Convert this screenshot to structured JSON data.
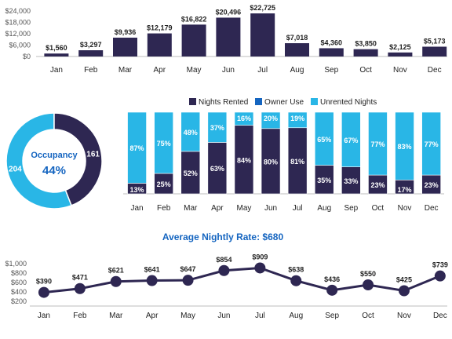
{
  "colors": {
    "dark": "#2E2752",
    "blue": "#1565C0",
    "cyan": "#29B6E6",
    "axis": "#555555",
    "grid": "#DDDDDD",
    "title": "#1565C0",
    "label": "#1F1F1F"
  },
  "chart_data": [
    {
      "type": "bar",
      "title": "",
      "categories": [
        "Jan",
        "Feb",
        "Mar",
        "Apr",
        "May",
        "Jun",
        "Jul",
        "Aug",
        "Sep",
        "Oct",
        "Nov",
        "Dec"
      ],
      "values": [
        1560,
        3297,
        9936,
        12179,
        16822,
        20496,
        22725,
        7018,
        4360,
        3850,
        2125,
        5173
      ],
      "value_labels": [
        "$1,560",
        "$3,297",
        "$9,936",
        "$12,179",
        "$16,822",
        "$20,496",
        "$22,725",
        "$7,018",
        "$4,360",
        "$3,850",
        "$2,125",
        "$5,173"
      ],
      "ylim": [
        0,
        24000
      ],
      "y_ticks": [
        0,
        6000,
        12000,
        18000,
        24000
      ],
      "y_tick_labels": [
        "$0",
        "$6,000",
        "$12,000",
        "$18,000",
        "$24,000"
      ],
      "grid": false
    },
    {
      "type": "pie",
      "title": "",
      "center_label": "Occupancy",
      "center_value": "44%",
      "slices": [
        {
          "name": "Nights Rented",
          "value": 161,
          "label": "161"
        },
        {
          "name": "Unrented Nights",
          "value": 204,
          "label": "204"
        }
      ]
    },
    {
      "type": "bar",
      "stacked": true,
      "percent": true,
      "title": "",
      "categories": [
        "Jan",
        "Feb",
        "Mar",
        "Apr",
        "May",
        "Jun",
        "Jul",
        "Aug",
        "Sep",
        "Oct",
        "Nov",
        "Dec"
      ],
      "legend_position": "top-right",
      "series": [
        {
          "name": "Nights Rented",
          "values": [
            13,
            25,
            52,
            63,
            84,
            80,
            81,
            35,
            33,
            23,
            17,
            23
          ],
          "labels": [
            "13%",
            "25%",
            "52%",
            "63%",
            "84%",
            "80%",
            "81%",
            "35%",
            "33%",
            "23%",
            "17%",
            "23%"
          ]
        },
        {
          "name": "Owner Use",
          "values": [
            0,
            0,
            0,
            0,
            0,
            0,
            0,
            0,
            0,
            0,
            0,
            0
          ],
          "labels": []
        },
        {
          "name": "Unrented Nights",
          "values": [
            87,
            75,
            48,
            37,
            16,
            20,
            19,
            65,
            67,
            77,
            83,
            77
          ],
          "labels": [
            "87%",
            "75%",
            "48%",
            "37%",
            "16%",
            "20%",
            "19%",
            "65%",
            "67%",
            "77%",
            "83%",
            "77%"
          ]
        }
      ],
      "ylim": [
        0,
        100
      ]
    },
    {
      "type": "line",
      "title": "Average Nightly Rate: $680",
      "categories": [
        "Jan",
        "Feb",
        "Mar",
        "Apr",
        "May",
        "Jun",
        "Jul",
        "Aug",
        "Sep",
        "Oct",
        "Nov",
        "Dec"
      ],
      "values": [
        390,
        471,
        621,
        641,
        647,
        854,
        909,
        638,
        436,
        550,
        425,
        739
      ],
      "value_labels": [
        "$390",
        "$471",
        "$621",
        "$641",
        "$647",
        "$854",
        "$909",
        "$638",
        "$436",
        "$550",
        "$425",
        "$739"
      ],
      "ylim": [
        200,
        1000
      ],
      "y_ticks": [
        200,
        400,
        600,
        800,
        1000
      ],
      "y_tick_labels": [
        "$200",
        "$400",
        "$600",
        "$800",
        "$1,000"
      ],
      "grid": false
    }
  ]
}
